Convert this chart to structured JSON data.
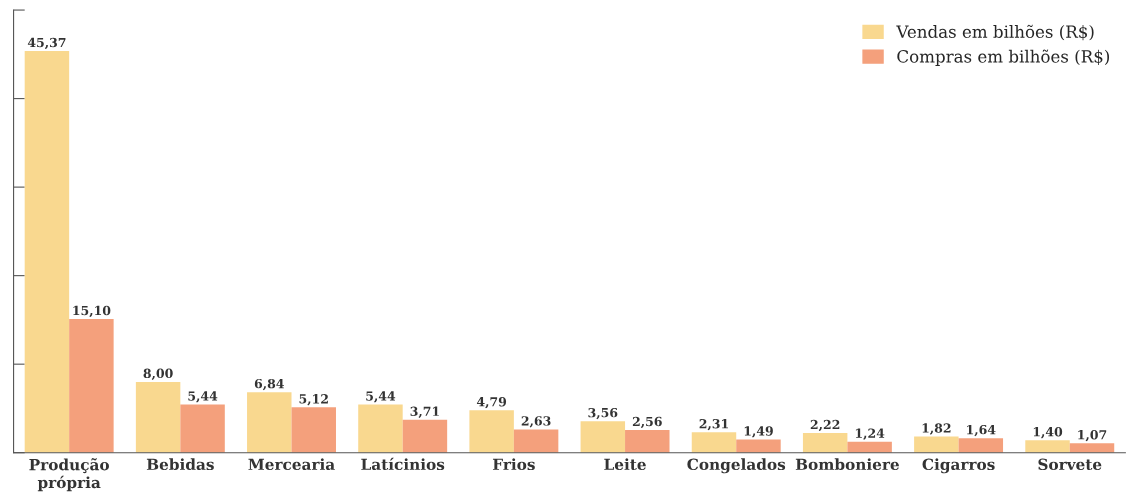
{
  "chart_data": {
    "type": "bar",
    "categories": [
      "Produção\nprópria",
      "Bebidas",
      "Mercearia",
      "Latícinios",
      "Frios",
      "Leite",
      "Congelados",
      "Bomboniere",
      "Cigarros",
      "Sorvete"
    ],
    "series": [
      {
        "name": "Vendas em bilhões (R$)",
        "color": "#f9d88f",
        "values": [
          45.37,
          8.0,
          6.84,
          5.44,
          4.79,
          3.56,
          2.31,
          2.22,
          1.82,
          1.4
        ],
        "value_labels": [
          "45,37",
          "8,00",
          "6,84",
          "5,44",
          "4,79",
          "3,56",
          "2,31",
          "2,22",
          "1,82",
          "1,40"
        ]
      },
      {
        "name": "Compras em bilhões (R$)",
        "color": "#f4a07c",
        "values": [
          15.1,
          5.44,
          5.12,
          3.71,
          2.63,
          2.56,
          1.49,
          1.24,
          1.64,
          1.07
        ],
        "value_labels": [
          "15,10",
          "5,44",
          "5,12",
          "3,71",
          "2,63",
          "2,56",
          "1,49",
          "1,24",
          "1,64",
          "1,07"
        ]
      }
    ],
    "ylim": [
      0,
      50
    ],
    "yticks": [
      {
        "value": 0,
        "label": null
      },
      {
        "value": 10,
        "label": null
      },
      {
        "value": 20,
        "label": null
      },
      {
        "value": 30,
        "label": null
      },
      {
        "value": 40,
        "label": null
      },
      {
        "value": 50,
        "label": null
      }
    ],
    "grid": false,
    "legend": "top right"
  }
}
